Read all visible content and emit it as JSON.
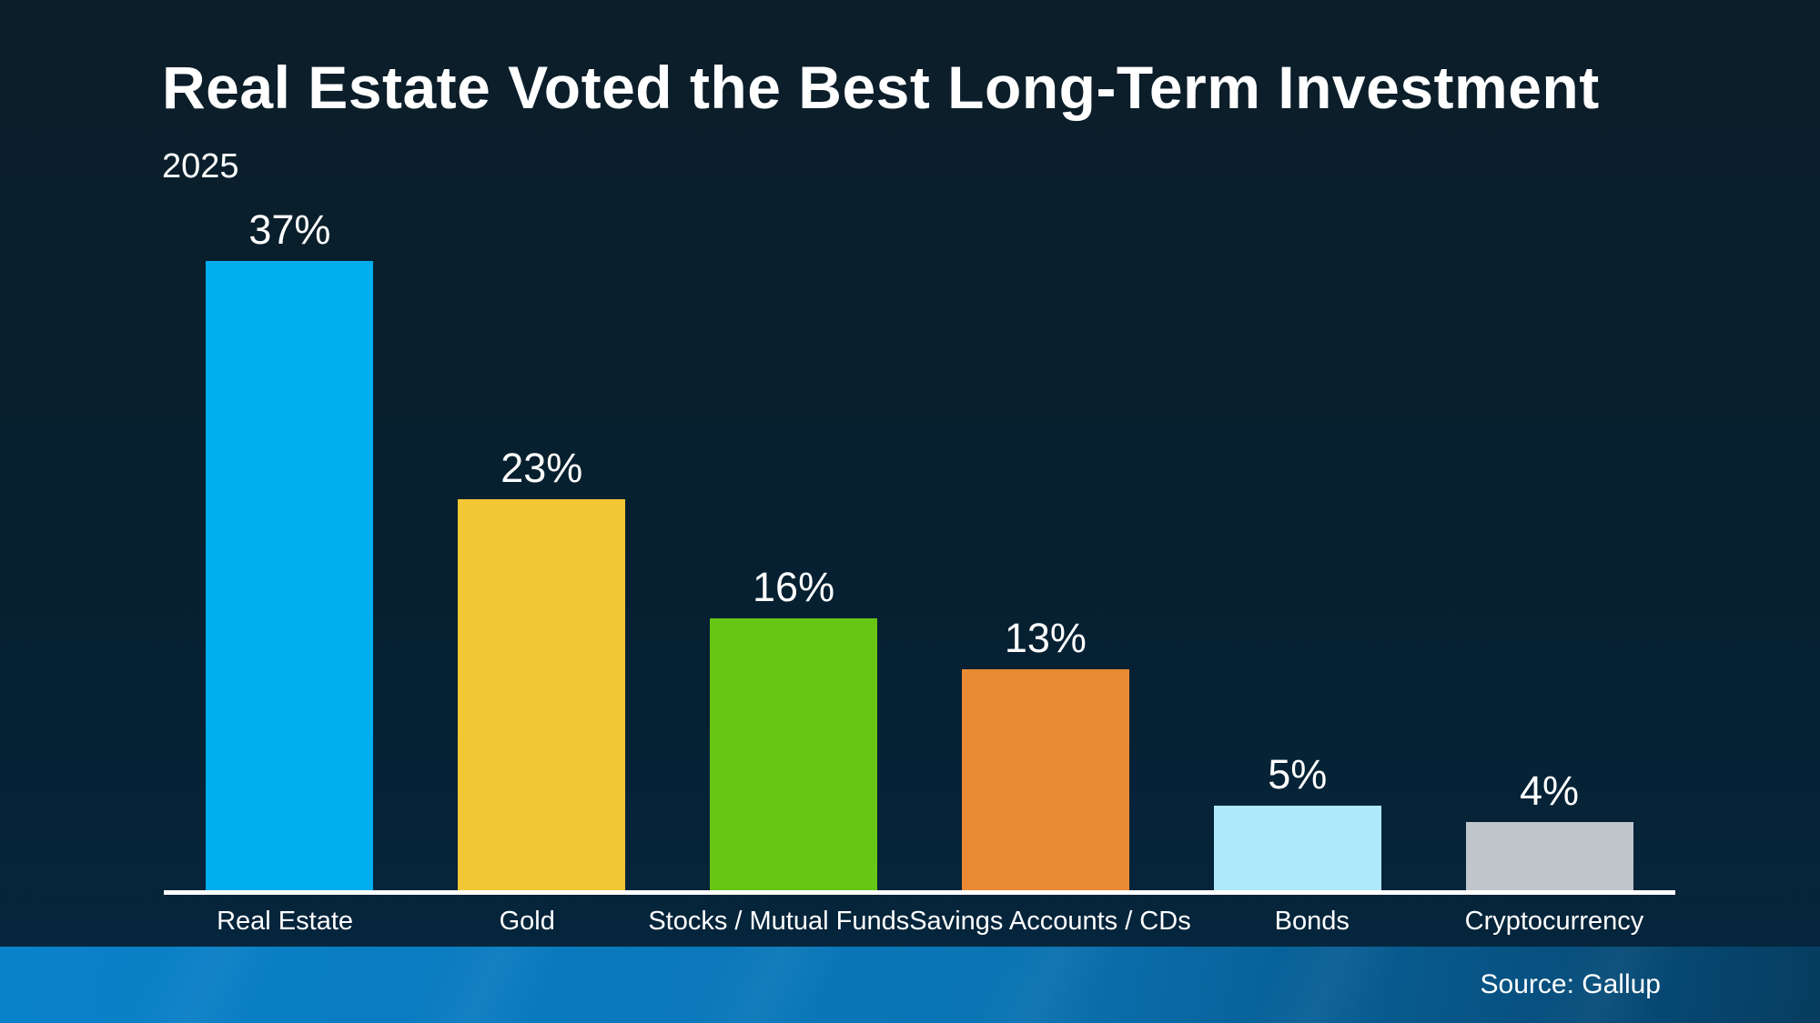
{
  "header": {
    "title": "Real Estate Voted the Best Long-Term Investment",
    "subtitle": "2025"
  },
  "footer": {
    "source": "Source: Gallup"
  },
  "colors": {
    "background_top": "#0c1e29",
    "background_bottom": "#05273f",
    "axis": "#ffffff",
    "text": "#ffffff",
    "footer_gradient_left": "#0a82ca",
    "footer_gradient_right": "#063d60"
  },
  "chart_data": {
    "type": "bar",
    "title": "Real Estate Voted the Best Long-Term Investment",
    "subtitle": "2025",
    "categories": [
      "Real Estate",
      "Gold",
      "Stocks / Mutual Funds",
      "Savings Accounts / CDs",
      "Bonds",
      "Cryptocurrency"
    ],
    "values": [
      37,
      23,
      16,
      13,
      5,
      4
    ],
    "value_labels": [
      "37%",
      "23%",
      "16%",
      "13%",
      "5%",
      "4%"
    ],
    "bar_colors": [
      "#00adee",
      "#f2c733",
      "#67c514",
      "#ea8a33",
      "#aee9fc",
      "#c1c5cc"
    ],
    "xlabel": "",
    "ylabel": "",
    "ylim": [
      0,
      40
    ],
    "grid": false,
    "legend": false,
    "data_labels": true,
    "source": "Source: Gallup"
  }
}
